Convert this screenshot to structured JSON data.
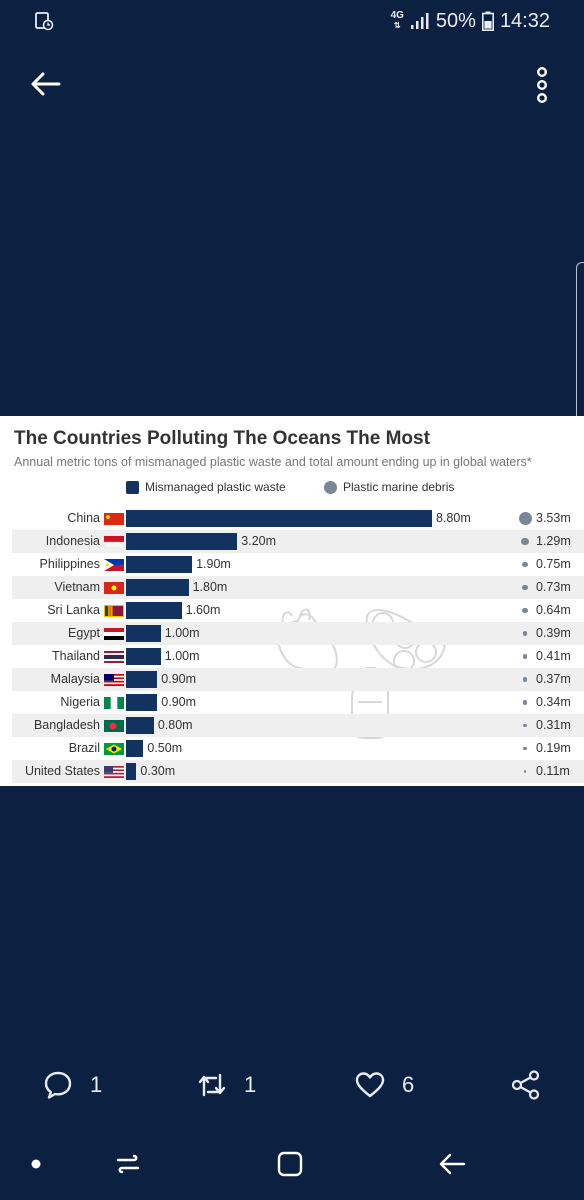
{
  "status_bar": {
    "network": "4G",
    "battery": "50%",
    "time": "14:32"
  },
  "icons": {
    "back": "back-arrow-icon",
    "more": "more-vertical-icon",
    "reply": "comment-icon",
    "retweet": "retweet-icon",
    "like": "heart-icon",
    "share": "share-icon"
  },
  "chart_data": {
    "type": "bar",
    "title": "The Countries Polluting The Oceans The Most",
    "subtitle": "Annual metric tons of mismanaged plastic waste and total amount ending up in global waters*",
    "legend": [
      "Mismanaged plastic waste",
      "Plastic marine debris"
    ],
    "categories": [
      "China",
      "Indonesia",
      "Philippines",
      "Vietnam",
      "Sri Lanka",
      "Egypt",
      "Thailand",
      "Malaysia",
      "Nigeria",
      "Bangladesh",
      "Brazil",
      "United States"
    ],
    "series": [
      {
        "name": "Mismanaged plastic waste",
        "values": [
          8.8,
          3.2,
          1.9,
          1.8,
          1.6,
          1.0,
          1.0,
          0.9,
          0.9,
          0.8,
          0.5,
          0.3
        ],
        "labels": [
          "8.80m",
          "3.20m",
          "1.90m",
          "1.80m",
          "1.60m",
          "1.00m",
          "1.00m",
          "0.90m",
          "0.90m",
          "0.80m",
          "0.50m",
          "0.30m"
        ]
      },
      {
        "name": "Plastic marine debris",
        "values": [
          3.53,
          1.29,
          0.75,
          0.73,
          0.64,
          0.39,
          0.41,
          0.37,
          0.34,
          0.31,
          0.19,
          0.11
        ],
        "labels": [
          "3.53m",
          "1.29m",
          "0.75m",
          "0.73m",
          "0.64m",
          "0.39m",
          "0.41m",
          "0.37m",
          "0.34m",
          "0.31m",
          "0.19m",
          "0.11m"
        ]
      }
    ]
  },
  "actions": {
    "reply_count": "1",
    "retweet_count": "1",
    "like_count": "6"
  }
}
